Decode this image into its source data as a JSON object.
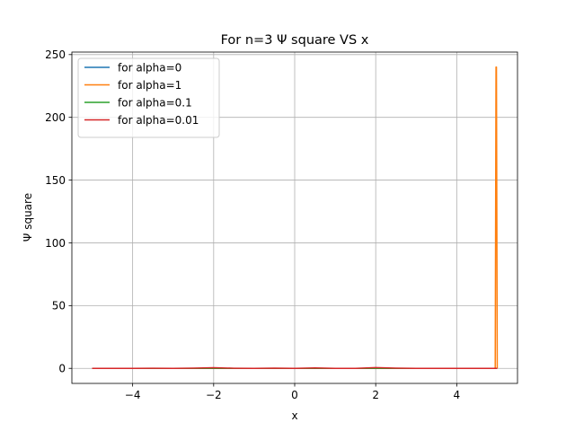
{
  "chart_data": {
    "type": "line",
    "title": "For n=3 Ψ square VS x",
    "xlabel": "x",
    "ylabel": "Ψ square",
    "xlim": [
      -5.5,
      5.5
    ],
    "ylim": [
      -12,
      252
    ],
    "xticks": [
      -4,
      -2,
      0,
      2,
      4
    ],
    "xtick_labels": [
      "−4",
      "−2",
      "0",
      "2",
      "4"
    ],
    "yticks": [
      0,
      50,
      100,
      150,
      200,
      250
    ],
    "ytick_labels": [
      "0",
      "50",
      "100",
      "150",
      "200",
      "250"
    ],
    "grid": true,
    "legend_position": "upper-left",
    "series": [
      {
        "name": "for alpha=0",
        "color": "#1f77b4",
        "x": [
          -5,
          -4,
          -3,
          -2,
          -1,
          0,
          1,
          2,
          3,
          4,
          5
        ],
        "y": [
          0,
          0,
          0,
          0,
          0,
          0,
          0,
          0,
          0,
          0,
          0
        ]
      },
      {
        "name": "for alpha=1",
        "color": "#ff7f0e",
        "x": [
          -5,
          -4,
          -3,
          -2,
          -1,
          0,
          1,
          2,
          3,
          4,
          4.8,
          4.95,
          4.97,
          4.98,
          5
        ],
        "y": [
          0,
          0,
          0,
          0,
          0,
          0,
          0,
          0,
          0,
          0,
          0,
          0,
          240,
          240,
          0
        ]
      },
      {
        "name": "for alpha=0.1",
        "color": "#2ca02c",
        "x": [
          -5,
          -4,
          -3,
          -2,
          -1,
          0,
          1,
          2,
          3,
          4,
          5
        ],
        "y": [
          0,
          0,
          0,
          0,
          0,
          0,
          0,
          0,
          0,
          0,
          0
        ]
      },
      {
        "name": "for alpha=0.01",
        "color": "#d62728",
        "x": [
          -5,
          -4.5,
          -4,
          -3.5,
          -3,
          -2.5,
          -2,
          -1.5,
          -1,
          -0.5,
          0,
          0.5,
          1,
          1.5,
          2,
          2.5,
          3,
          3.5,
          4,
          4.5,
          5
        ],
        "y": [
          0,
          0,
          0,
          0.1,
          0,
          0.2,
          0.5,
          0.1,
          0,
          0.2,
          0,
          0.3,
          0,
          0,
          0.6,
          0.2,
          0,
          0,
          0,
          0,
          0
        ]
      }
    ]
  }
}
